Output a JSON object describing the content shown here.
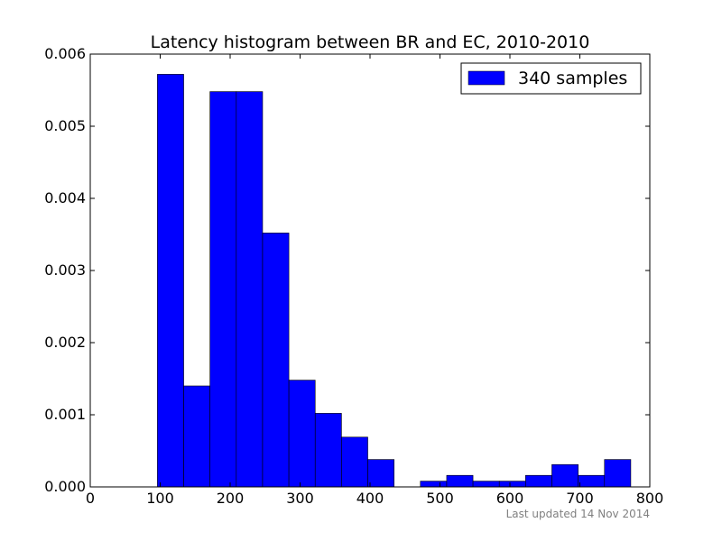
{
  "chart_data": {
    "type": "bar",
    "title": "Latency histogram between BR and EC, 2010-2010",
    "xlabel": "",
    "ylabel": "",
    "xlim": [
      0,
      800
    ],
    "ylim": [
      0,
      0.006
    ],
    "x_ticks": [
      "0",
      "100",
      "200",
      "300",
      "400",
      "500",
      "600",
      "700",
      "800"
    ],
    "y_ticks": [
      "0.000",
      "0.001",
      "0.002",
      "0.003",
      "0.004",
      "0.005",
      "0.006"
    ],
    "grid": false,
    "legend_position": "top-right",
    "bar_color": "#0000ff",
    "bin_start": 96,
    "bin_width": 37.6,
    "values": [
      0.00572,
      0.0014,
      0.00548,
      0.00548,
      0.00352,
      0.00148,
      0.00102,
      0.00069,
      0.00038,
      0,
      8e-05,
      0.00016,
      8e-05,
      8e-05,
      0.00016,
      0.00031,
      0.00016,
      0.00038
    ],
    "series": [
      {
        "name": "340 samples",
        "color": "#0000ff"
      }
    ],
    "footnote": "Last updated 14 Nov 2014"
  }
}
